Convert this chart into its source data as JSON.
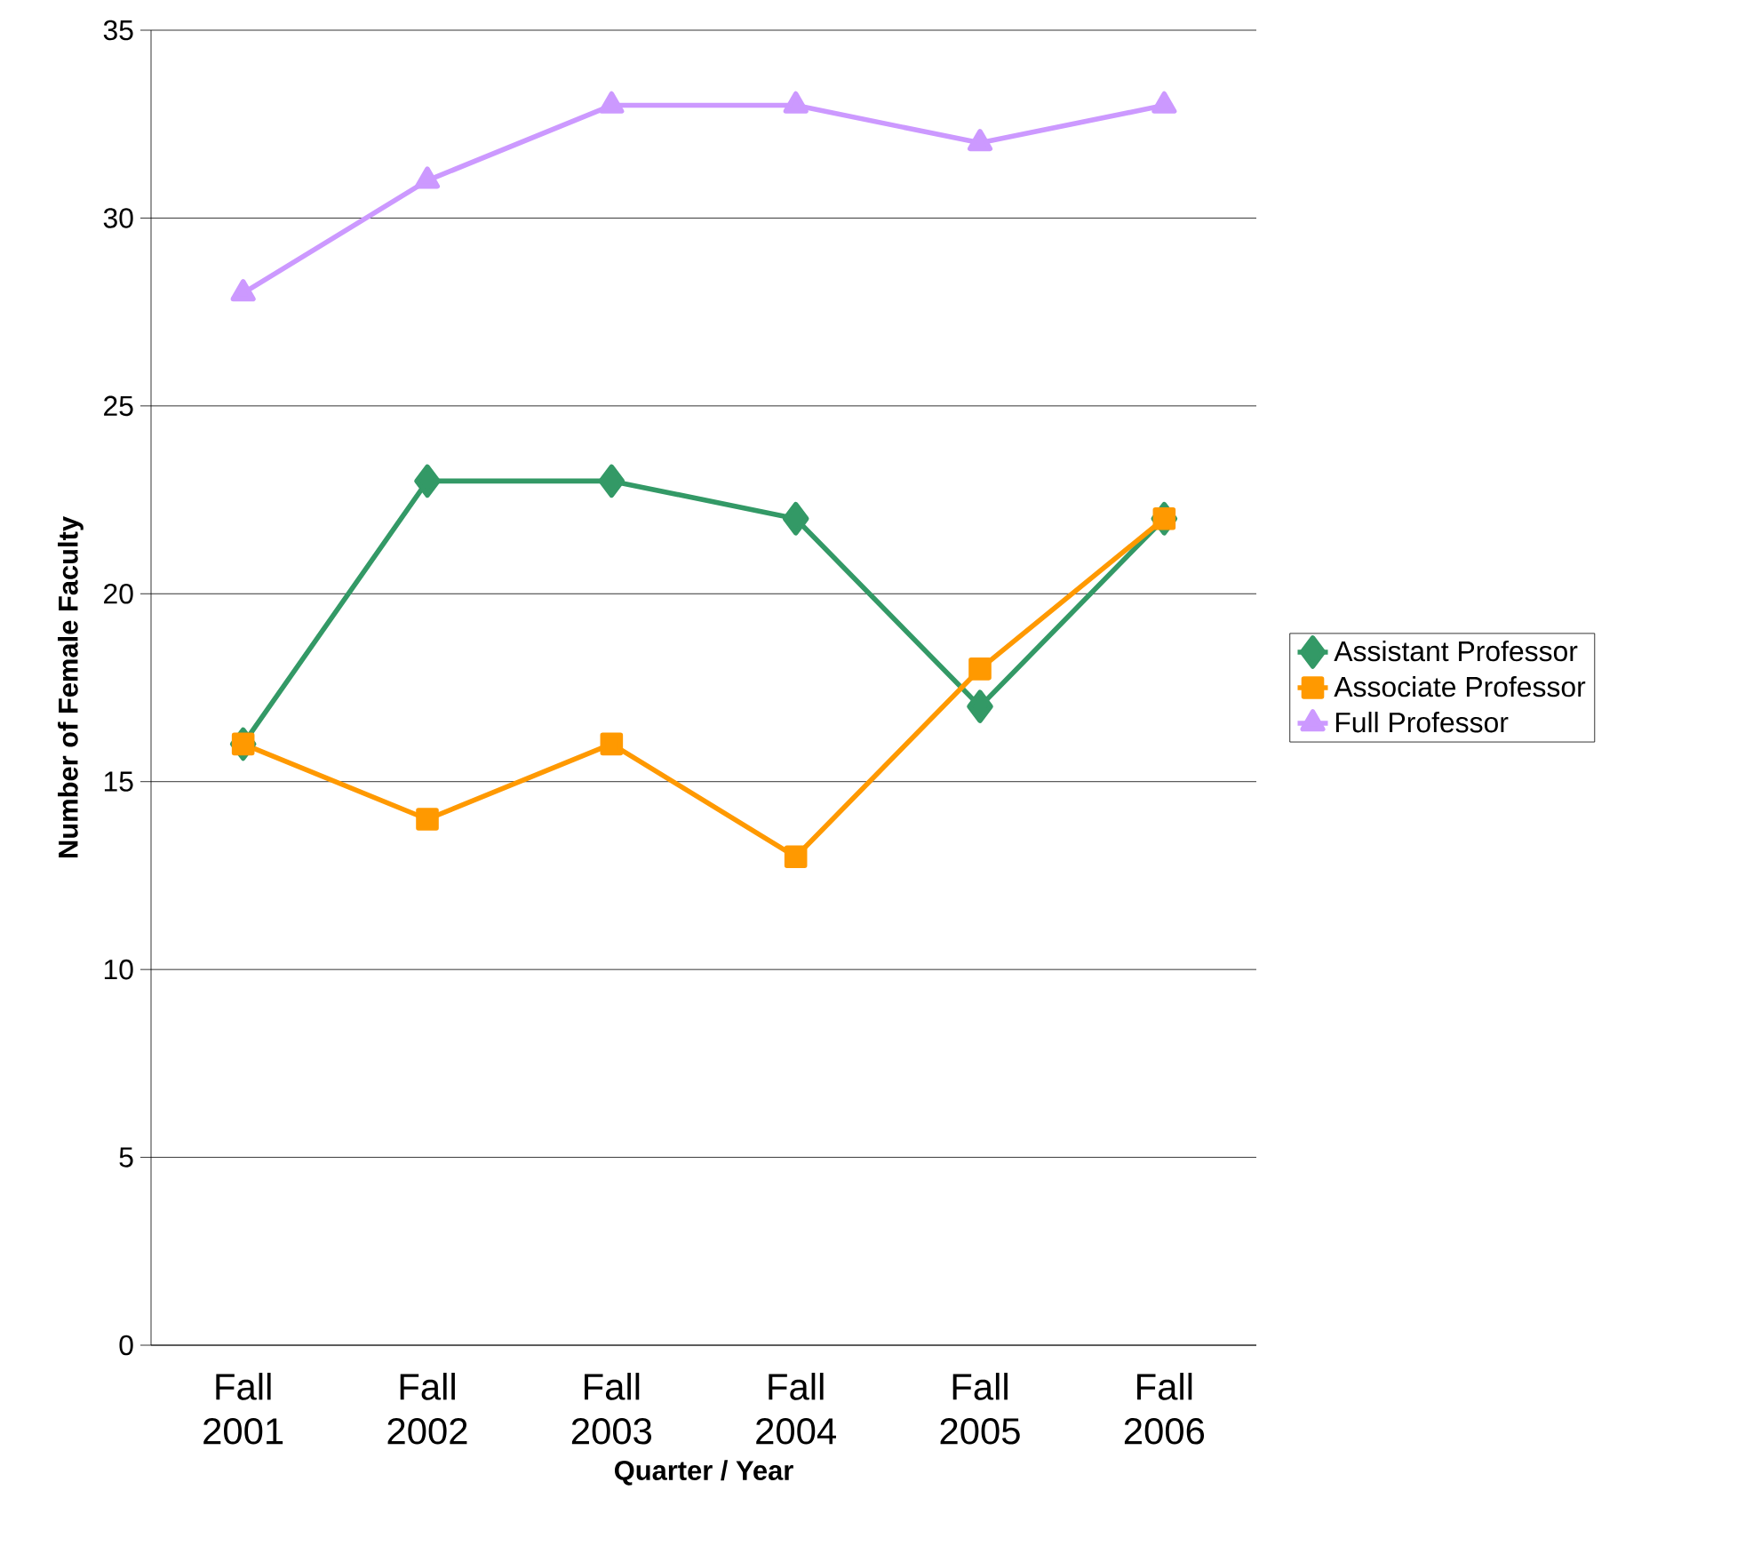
{
  "chart_data": {
    "type": "line",
    "xlabel": "Quarter / Year",
    "ylabel": "Number of Female Faculty",
    "categories": [
      "Fall 2001",
      "Fall 2002",
      "Fall 2003",
      "Fall 2004",
      "Fall 2005",
      "Fall 2006"
    ],
    "series": [
      {
        "name": "Assistant Professor",
        "color": "#339966",
        "marker": "diamond",
        "values": [
          16,
          23,
          23,
          22,
          17,
          22
        ]
      },
      {
        "name": "Associate Professor",
        "color": "#ff9900",
        "marker": "square",
        "values": [
          16,
          14,
          16,
          13,
          18,
          22
        ]
      },
      {
        "name": "Full Professor",
        "color": "#cc99ff",
        "marker": "triangle",
        "values": [
          28,
          31,
          33,
          33,
          32,
          33
        ]
      }
    ],
    "ylim": [
      0,
      35
    ],
    "yticks": [
      0,
      5,
      10,
      15,
      20,
      25,
      30,
      35
    ],
    "grid": "y",
    "legend": "right",
    "line_style": "solid"
  }
}
